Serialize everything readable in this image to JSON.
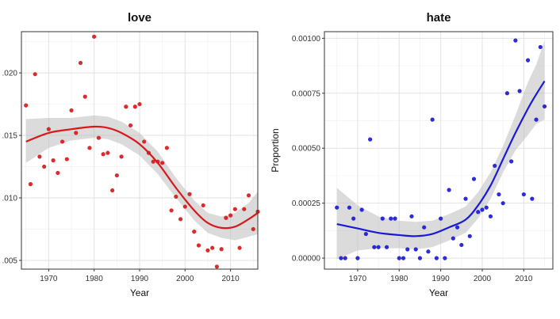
{
  "figure": {
    "background": "#ffffff"
  },
  "chart_data": [
    {
      "type": "scatter",
      "title": "love",
      "xlabel": "Year",
      "ylabel": "",
      "xlim": [
        1964,
        2016
      ],
      "ylim": [
        0.0043,
        0.0233
      ],
      "x_ticks": [
        1970,
        1980,
        1990,
        2000,
        2010
      ],
      "x_tick_labels": [
        "1970",
        "1980",
        "1990",
        "2000",
        "2010"
      ],
      "y_ticks": [
        0.005,
        0.01,
        0.015,
        0.02
      ],
      "y_tick_labels": [
        ".005",
        ".010",
        ".015",
        ".020"
      ],
      "grid": true,
      "legend": "none",
      "point_color": "#d7191c",
      "smooth_color": "#d7191c",
      "band_color": "#bdbdbd",
      "points": [
        [
          1965,
          0.0174
        ],
        [
          1966,
          0.0111
        ],
        [
          1967,
          0.0199
        ],
        [
          1968,
          0.0133
        ],
        [
          1969,
          0.0125
        ],
        [
          1970,
          0.0155
        ],
        [
          1971,
          0.013
        ],
        [
          1972,
          0.012
        ],
        [
          1973,
          0.0145
        ],
        [
          1974,
          0.0131
        ],
        [
          1975,
          0.017
        ],
        [
          1976,
          0.0152
        ],
        [
          1977,
          0.0208
        ],
        [
          1978,
          0.0181
        ],
        [
          1979,
          0.014
        ],
        [
          1980,
          0.0229
        ],
        [
          1981,
          0.0148
        ],
        [
          1982,
          0.0135
        ],
        [
          1983,
          0.0136
        ],
        [
          1984,
          0.0106
        ],
        [
          1985,
          0.0118
        ],
        [
          1986,
          0.0133
        ],
        [
          1987,
          0.0173
        ],
        [
          1988,
          0.0158
        ],
        [
          1989,
          0.0173
        ],
        [
          1990,
          0.0175
        ],
        [
          1991,
          0.0145
        ],
        [
          1992,
          0.0136
        ],
        [
          1993,
          0.0129
        ],
        [
          1994,
          0.0129
        ],
        [
          1995,
          0.0128
        ],
        [
          1996,
          0.014
        ],
        [
          1997,
          0.009
        ],
        [
          1998,
          0.0101
        ],
        [
          1999,
          0.0083
        ],
        [
          2000,
          0.0093
        ],
        [
          2001,
          0.0103
        ],
        [
          2002,
          0.0073
        ],
        [
          2003,
          0.0062
        ],
        [
          2004,
          0.0094
        ],
        [
          2005,
          0.0058
        ],
        [
          2006,
          0.006
        ],
        [
          2007,
          0.0045
        ],
        [
          2008,
          0.0059
        ],
        [
          2009,
          0.0084
        ],
        [
          2010,
          0.0086
        ],
        [
          2011,
          0.0091
        ],
        [
          2012,
          0.006
        ],
        [
          2013,
          0.0091
        ],
        [
          2014,
          0.0102
        ],
        [
          2015,
          0.0075
        ],
        [
          2016,
          0.0089
        ]
      ],
      "smooth": [
        [
          1965,
          0.0145
        ],
        [
          1970,
          0.0152
        ],
        [
          1975,
          0.0155
        ],
        [
          1980,
          0.0157
        ],
        [
          1983,
          0.0156
        ],
        [
          1986,
          0.0152
        ],
        [
          1990,
          0.0143
        ],
        [
          1994,
          0.0128
        ],
        [
          1998,
          0.0108
        ],
        [
          2002,
          0.009
        ],
        [
          2005,
          0.008
        ],
        [
          2008,
          0.0076
        ],
        [
          2011,
          0.0077
        ],
        [
          2014,
          0.0083
        ],
        [
          2016,
          0.0088
        ]
      ],
      "band_upper": [
        [
          1965,
          0.0163
        ],
        [
          1970,
          0.0164
        ],
        [
          1975,
          0.0164
        ],
        [
          1980,
          0.0166
        ],
        [
          1983,
          0.0165
        ],
        [
          1986,
          0.0161
        ],
        [
          1990,
          0.0152
        ],
        [
          1994,
          0.0137
        ],
        [
          1998,
          0.0116
        ],
        [
          2002,
          0.0098
        ],
        [
          2005,
          0.0088
        ],
        [
          2008,
          0.0085
        ],
        [
          2011,
          0.0088
        ],
        [
          2014,
          0.0096
        ],
        [
          2016,
          0.0105
        ]
      ],
      "band_lower": [
        [
          1965,
          0.0128
        ],
        [
          1970,
          0.014
        ],
        [
          1975,
          0.0146
        ],
        [
          1980,
          0.0148
        ],
        [
          1983,
          0.0147
        ],
        [
          1986,
          0.0143
        ],
        [
          1990,
          0.0134
        ],
        [
          1994,
          0.0119
        ],
        [
          1998,
          0.01
        ],
        [
          2002,
          0.0082
        ],
        [
          2005,
          0.0072
        ],
        [
          2008,
          0.0068
        ],
        [
          2011,
          0.0066
        ],
        [
          2014,
          0.0069
        ],
        [
          2016,
          0.0071
        ]
      ]
    },
    {
      "type": "scatter",
      "title": "hate",
      "xlabel": "Year",
      "ylabel": "Proportion",
      "xlim": [
        1962,
        2017
      ],
      "ylim": [
        -5e-05,
        0.00103
      ],
      "x_ticks": [
        1970,
        1980,
        1990,
        2000,
        2010
      ],
      "x_tick_labels": [
        "1970",
        "1980",
        "1990",
        "2000",
        "2010"
      ],
      "y_ticks": [
        0.0,
        0.00025,
        0.0005,
        0.00075,
        0.001
      ],
      "y_tick_labels": [
        "0.00000",
        "0.00025",
        "0.00050",
        "0.00075",
        "0.00100"
      ],
      "grid": true,
      "legend": "none",
      "point_color": "#1a1ad6",
      "smooth_color": "#1a1ad6",
      "band_color": "#bdbdbd",
      "points": [
        [
          1965,
          0.00023
        ],
        [
          1966,
          0.0
        ],
        [
          1967,
          0.0
        ],
        [
          1968,
          0.00023
        ],
        [
          1969,
          0.00018
        ],
        [
          1970,
          0.0
        ],
        [
          1971,
          0.00022
        ],
        [
          1972,
          0.00011
        ],
        [
          1973,
          0.00054
        ],
        [
          1974,
          5e-05
        ],
        [
          1975,
          5e-05
        ],
        [
          1976,
          0.00018
        ],
        [
          1977,
          5e-05
        ],
        [
          1978,
          0.00018
        ],
        [
          1979,
          0.00018
        ],
        [
          1980,
          0.0
        ],
        [
          1981,
          0.0
        ],
        [
          1982,
          4e-05
        ],
        [
          1983,
          0.00019
        ],
        [
          1984,
          4e-05
        ],
        [
          1985,
          0.0
        ],
        [
          1986,
          0.00014
        ],
        [
          1987,
          3e-05
        ],
        [
          1988,
          0.00063
        ],
        [
          1989,
          0.0
        ],
        [
          1990,
          0.00018
        ],
        [
          1991,
          0.0
        ],
        [
          1992,
          0.00031
        ],
        [
          1993,
          9e-05
        ],
        [
          1994,
          0.00014
        ],
        [
          1995,
          6e-05
        ],
        [
          1996,
          0.00027
        ],
        [
          1997,
          0.0001
        ],
        [
          1998,
          0.00036
        ],
        [
          1999,
          0.00021
        ],
        [
          2000,
          0.00022
        ],
        [
          2001,
          0.00023
        ],
        [
          2002,
          0.00019
        ],
        [
          2003,
          0.00042
        ],
        [
          2004,
          0.00029
        ],
        [
          2005,
          0.00025
        ],
        [
          2006,
          0.00075
        ],
        [
          2007,
          0.00044
        ],
        [
          2008,
          0.00099
        ],
        [
          2009,
          0.00076
        ],
        [
          2010,
          0.00029
        ],
        [
          2011,
          0.0009
        ],
        [
          2012,
          0.00027
        ],
        [
          2013,
          0.00063
        ],
        [
          2014,
          0.00096
        ],
        [
          2015,
          0.00069
        ]
      ],
      "smooth": [
        [
          1965,
          0.000155
        ],
        [
          1970,
          0.000135
        ],
        [
          1975,
          0.000115
        ],
        [
          1980,
          0.000105
        ],
        [
          1984,
          0.0001
        ],
        [
          1988,
          0.00011
        ],
        [
          1992,
          0.00014
        ],
        [
          1996,
          0.000175
        ],
        [
          1999,
          0.00024
        ],
        [
          2002,
          0.00033
        ],
        [
          2005,
          0.00045
        ],
        [
          2008,
          0.00057
        ],
        [
          2011,
          0.00068
        ],
        [
          2013,
          0.000745
        ],
        [
          2015,
          0.000805
        ]
      ],
      "band_upper": [
        [
          1965,
          0.00032
        ],
        [
          1970,
          0.00024
        ],
        [
          1975,
          0.00019
        ],
        [
          1980,
          0.00017
        ],
        [
          1984,
          0.000165
        ],
        [
          1988,
          0.00017
        ],
        [
          1992,
          0.0002
        ],
        [
          1996,
          0.000235
        ],
        [
          1999,
          0.0003
        ],
        [
          2002,
          0.00039
        ],
        [
          2005,
          0.00051
        ],
        [
          2008,
          0.00065
        ],
        [
          2011,
          0.0008
        ],
        [
          2013,
          0.00088
        ],
        [
          2015,
          0.00099
        ]
      ],
      "band_lower": [
        [
          1965,
          -5e-06
        ],
        [
          1970,
          3.5e-05
        ],
        [
          1975,
          4.5e-05
        ],
        [
          1980,
          4.5e-05
        ],
        [
          1984,
          4e-05
        ],
        [
          1988,
          5e-05
        ],
        [
          1992,
          8e-05
        ],
        [
          1996,
          0.000115
        ],
        [
          1999,
          0.00018
        ],
        [
          2002,
          0.00027
        ],
        [
          2005,
          0.00039
        ],
        [
          2008,
          0.00049
        ],
        [
          2011,
          0.00056
        ],
        [
          2013,
          0.00061
        ],
        [
          2015,
          0.00063
        ]
      ]
    }
  ]
}
